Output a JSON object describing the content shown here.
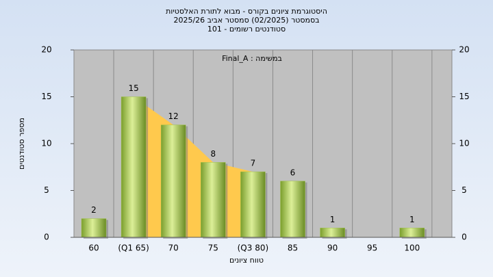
{
  "chart_data": {
    "type": "bar",
    "title": [
      "היסטוגרמת ציונים בקורס - מבוא לתורת האלסטיות",
      "בסמסטר  (02/2025)  סמסטר אביב 2025/26",
      "סטודנטים רשומים - 101"
    ],
    "annotation": "Final_A : במשימה",
    "x_label": "טווח ציונים",
    "y_label": "מספר סטודנטים",
    "categories": [
      "60",
      "(Q1 65)",
      "70",
      "75",
      "(Q3 80)",
      "85",
      "90",
      "95",
      "100"
    ],
    "values": [
      2,
      15,
      12,
      8,
      7,
      6,
      1,
      null,
      1
    ],
    "color": "#9fc24a",
    "band_color": "#ffc94d",
    "ylim": [
      0,
      20
    ],
    "yticks": [
      0,
      5,
      10,
      15,
      20
    ],
    "y2lim": [
      0,
      20
    ],
    "y2ticks": [
      0,
      5,
      10,
      15,
      20
    ],
    "grid": true
  }
}
